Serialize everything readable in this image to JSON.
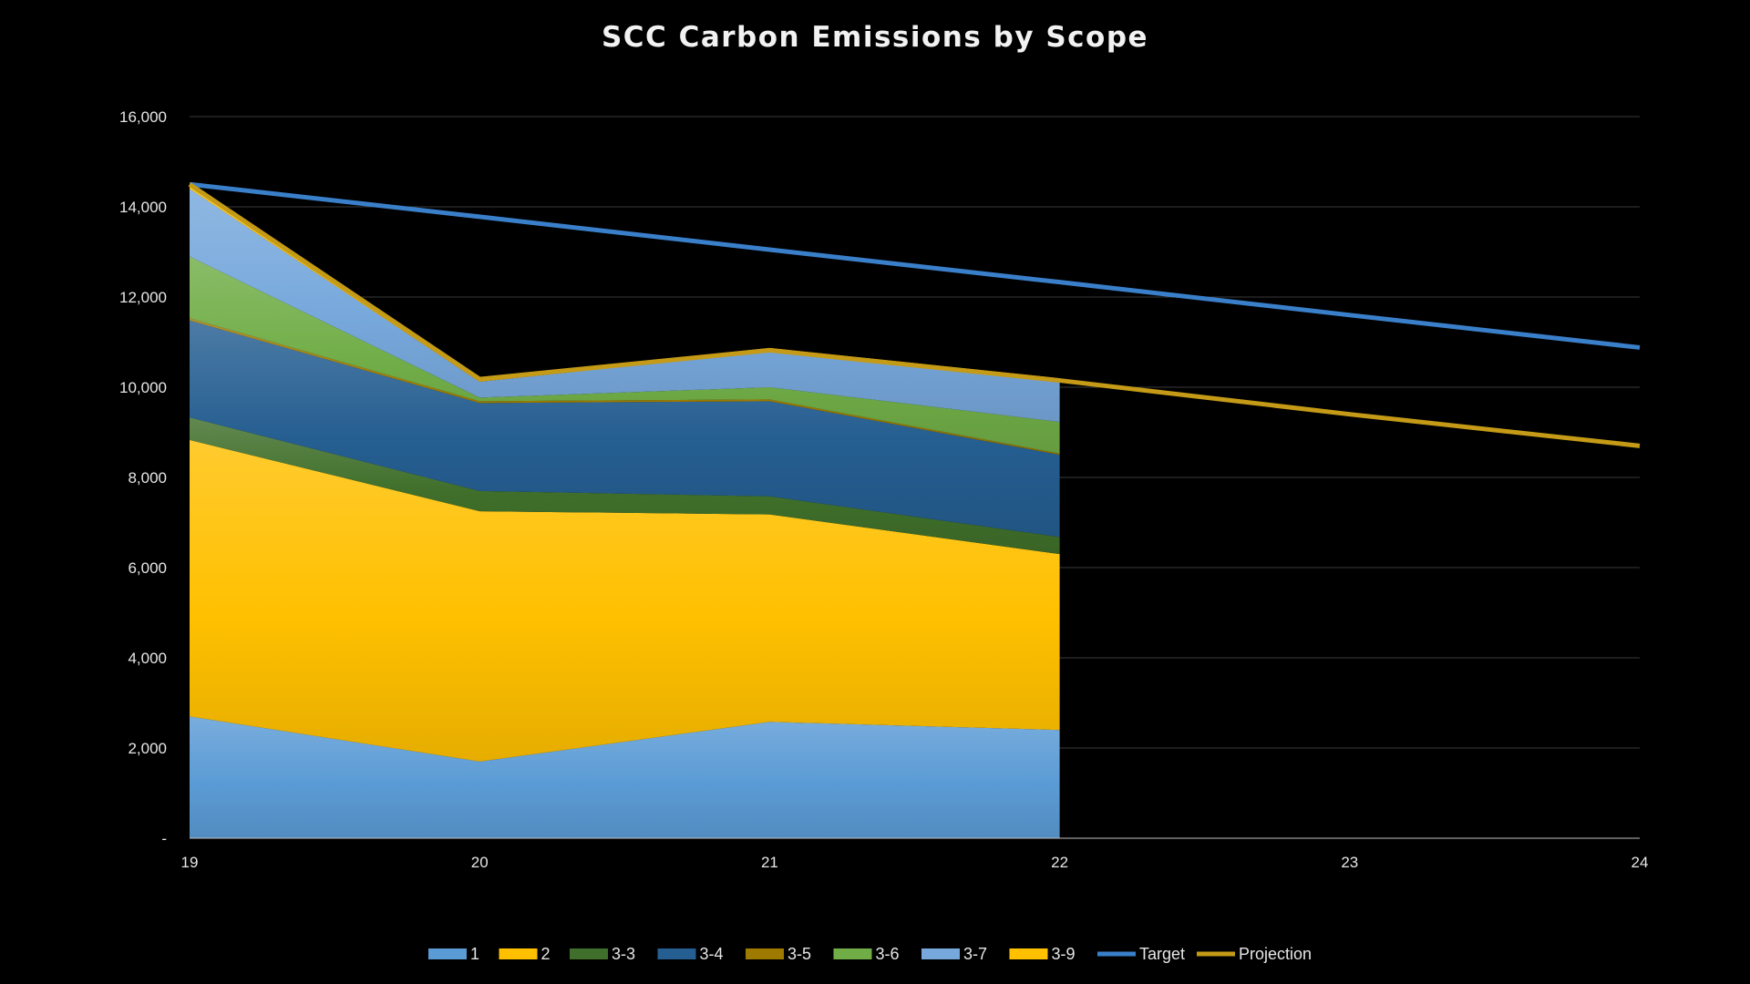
{
  "chart_data": {
    "type": "area",
    "title": "SCC Carbon Emissions by Scope",
    "xlabel": "",
    "ylabel": "",
    "x_ticks": [
      "19",
      "20",
      "21",
      "22",
      "23",
      "24"
    ],
    "y_ticks": [
      "-",
      "2,000",
      "4,000",
      "6,000",
      "8,000",
      "10,000",
      "12,000",
      "14,000",
      "16,000"
    ],
    "ylim": [
      0,
      16000
    ],
    "grid": true,
    "legend_position": "bottom",
    "stacked_series": [
      {
        "name": "1",
        "color": "#5b9bd5",
        "x": [
          "19",
          "20",
          "21",
          "22"
        ],
        "values": [
          2700,
          1700,
          2580,
          2400
        ]
      },
      {
        "name": "2",
        "color": "#ffc000",
        "x": [
          "19",
          "20",
          "21",
          "22"
        ],
        "values": [
          6130,
          5550,
          4600,
          3900
        ]
      },
      {
        "name": "3-3",
        "color": "#3f6f2a",
        "x": [
          "19",
          "20",
          "21",
          "22"
        ],
        "values": [
          500,
          450,
          400,
          380
        ]
      },
      {
        "name": "3-4",
        "color": "#255e91",
        "x": [
          "19",
          "20",
          "21",
          "22"
        ],
        "values": [
          2150,
          1950,
          2110,
          1820
        ]
      },
      {
        "name": "3-5",
        "color": "#9e7b00",
        "x": [
          "19",
          "20",
          "21",
          "22"
        ],
        "values": [
          50,
          40,
          40,
          30
        ]
      },
      {
        "name": "3-6",
        "color": "#70ad47",
        "x": [
          "19",
          "20",
          "21",
          "22"
        ],
        "values": [
          1370,
          80,
          270,
          700
        ]
      },
      {
        "name": "3-7",
        "color": "#77a8dc",
        "x": [
          "19",
          "20",
          "21",
          "22"
        ],
        "values": [
          1500,
          350,
          800,
          970
        ]
      },
      {
        "name": "3-9",
        "color": "#ffc000",
        "x": [
          "19",
          "20",
          "21",
          "22"
        ],
        "values": [
          100,
          80,
          70,
          0
        ]
      }
    ],
    "line_series": [
      {
        "name": "Target",
        "color": "#3a7fc9",
        "x": [
          "19",
          "20",
          "21",
          "22",
          "23",
          "24"
        ],
        "values": [
          14500,
          13780,
          13050,
          12330,
          11600,
          10880
        ]
      },
      {
        "name": "Projection",
        "color": "#c49a16",
        "x": [
          "19",
          "20",
          "21",
          "22",
          "23",
          "24"
        ],
        "values": [
          14500,
          10180,
          10820,
          10150,
          9400,
          8700
        ]
      }
    ],
    "legend": [
      "1",
      "2",
      "3-3",
      "3-4",
      "3-5",
      "3-6",
      "3-7",
      "3-9",
      "Target",
      "Projection"
    ]
  }
}
